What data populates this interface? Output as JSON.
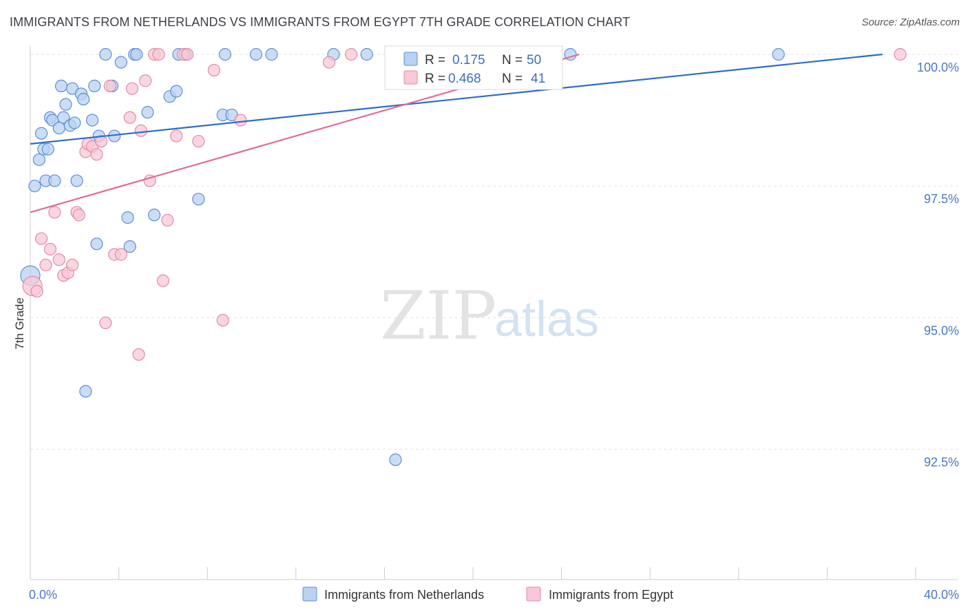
{
  "title": "IMMIGRANTS FROM NETHERLANDS VS IMMIGRANTS FROM EGYPT 7TH GRADE CORRELATION CHART",
  "source": "Source: ZipAtlas.com",
  "watermark": {
    "zip": "ZIP",
    "atlas": "atlas"
  },
  "colors": {
    "netherlands_fill": "#b9d2f1",
    "netherlands_stroke": "#5b8fd6",
    "netherlands_line": "#2d6cc9",
    "egypt_fill": "#f8c8d6",
    "egypt_stroke": "#e38aa6",
    "egypt_line": "#e06b96",
    "grid": "#e3e3e3",
    "tick_label": "#4a78c4"
  },
  "legend": {
    "rows": [
      {
        "r_label": "R =",
        "r_value": "0.175",
        "n_label": "N =",
        "n_value": "50"
      },
      {
        "r_label": "R =",
        "r_value": "0.468",
        "n_label": "N =",
        "n_value": "41"
      }
    ]
  },
  "chart_data": {
    "type": "scatter",
    "title": "IMMIGRANTS FROM NETHERLANDS VS IMMIGRANTS FROM EGYPT 7TH GRADE CORRELATION CHART",
    "xlabel": "",
    "ylabel": "7th Grade",
    "xlim": [
      0,
      40
    ],
    "ylim": [
      90.0,
      100.4
    ],
    "x_tick_labels": [
      {
        "value": 0,
        "label": "0.0%"
      },
      {
        "value": 40,
        "label": "40.0%"
      }
    ],
    "y_ticks": [
      {
        "value": 92.5,
        "label": "92.5%"
      },
      {
        "value": 95.0,
        "label": "95.0%"
      },
      {
        "value": 97.5,
        "label": "97.5%"
      },
      {
        "value": 100.0,
        "label": "100.0%"
      }
    ],
    "grid": true,
    "legend_position": "top-center",
    "series": [
      {
        "name": "Immigrants from Netherlands",
        "color": "#5b8fd6",
        "points": [
          [
            0.0,
            95.8
          ],
          [
            0.2,
            97.5
          ],
          [
            0.4,
            98.0
          ],
          [
            0.5,
            98.5
          ],
          [
            0.6,
            98.2
          ],
          [
            0.7,
            97.6
          ],
          [
            0.8,
            98.2
          ],
          [
            0.9,
            98.8
          ],
          [
            1.0,
            98.75
          ],
          [
            1.1,
            97.6
          ],
          [
            1.3,
            98.6
          ],
          [
            1.4,
            99.4
          ],
          [
            1.5,
            98.8
          ],
          [
            1.6,
            99.05
          ],
          [
            1.8,
            98.65
          ],
          [
            1.9,
            99.35
          ],
          [
            2.0,
            98.7
          ],
          [
            2.1,
            97.6
          ],
          [
            2.3,
            99.25
          ],
          [
            2.4,
            99.15
          ],
          [
            2.5,
            93.6
          ],
          [
            2.8,
            98.75
          ],
          [
            2.9,
            99.4
          ],
          [
            3.0,
            96.4
          ],
          [
            3.1,
            98.45
          ],
          [
            3.4,
            100.0
          ],
          [
            3.7,
            99.4
          ],
          [
            3.8,
            98.45
          ],
          [
            4.1,
            99.85
          ],
          [
            4.4,
            96.9
          ],
          [
            4.5,
            96.35
          ],
          [
            4.7,
            100.0
          ],
          [
            4.8,
            100.0
          ],
          [
            5.3,
            98.9
          ],
          [
            5.6,
            96.95
          ],
          [
            6.3,
            99.2
          ],
          [
            6.6,
            99.3
          ],
          [
            6.7,
            100.0
          ],
          [
            7.0,
            100.0
          ],
          [
            7.6,
            97.25
          ],
          [
            8.7,
            98.85
          ],
          [
            8.8,
            100.0
          ],
          [
            9.1,
            98.85
          ],
          [
            10.2,
            100.0
          ],
          [
            10.9,
            100.0
          ],
          [
            13.7,
            100.0
          ],
          [
            15.2,
            100.0
          ],
          [
            16.5,
            92.3
          ],
          [
            24.4,
            100.0
          ],
          [
            33.8,
            100.0
          ]
        ],
        "trendline": {
          "x": [
            0,
            38.5
          ],
          "y": [
            98.3,
            100.0
          ]
        }
      },
      {
        "name": "Immigrants from Egypt",
        "color": "#e38aa6",
        "points": [
          [
            0.1,
            95.6
          ],
          [
            0.3,
            95.5
          ],
          [
            0.5,
            96.5
          ],
          [
            0.7,
            96.0
          ],
          [
            0.9,
            96.3
          ],
          [
            1.1,
            97.0
          ],
          [
            1.3,
            96.1
          ],
          [
            1.5,
            95.8
          ],
          [
            1.7,
            95.85
          ],
          [
            1.9,
            96.0
          ],
          [
            2.1,
            97.0
          ],
          [
            2.2,
            96.95
          ],
          [
            2.5,
            98.15
          ],
          [
            2.6,
            98.3
          ],
          [
            2.8,
            98.25
          ],
          [
            3.0,
            98.1
          ],
          [
            3.2,
            98.35
          ],
          [
            3.4,
            94.9
          ],
          [
            3.6,
            99.4
          ],
          [
            3.8,
            96.2
          ],
          [
            4.1,
            96.2
          ],
          [
            4.5,
            98.8
          ],
          [
            4.6,
            99.35
          ],
          [
            4.9,
            94.3
          ],
          [
            5.0,
            98.55
          ],
          [
            5.2,
            99.5
          ],
          [
            5.4,
            97.6
          ],
          [
            5.6,
            100.0
          ],
          [
            5.8,
            100.0
          ],
          [
            6.0,
            95.7
          ],
          [
            6.2,
            96.85
          ],
          [
            6.6,
            98.45
          ],
          [
            6.9,
            100.0
          ],
          [
            7.1,
            100.0
          ],
          [
            7.6,
            98.35
          ],
          [
            8.3,
            99.7
          ],
          [
            8.7,
            94.95
          ],
          [
            9.5,
            98.75
          ],
          [
            13.5,
            99.85
          ],
          [
            14.5,
            100.0
          ],
          [
            39.3,
            100.0
          ]
        ],
        "trendline": {
          "x": [
            0,
            24.8
          ],
          "y": [
            97.0,
            100.0
          ]
        }
      }
    ]
  }
}
